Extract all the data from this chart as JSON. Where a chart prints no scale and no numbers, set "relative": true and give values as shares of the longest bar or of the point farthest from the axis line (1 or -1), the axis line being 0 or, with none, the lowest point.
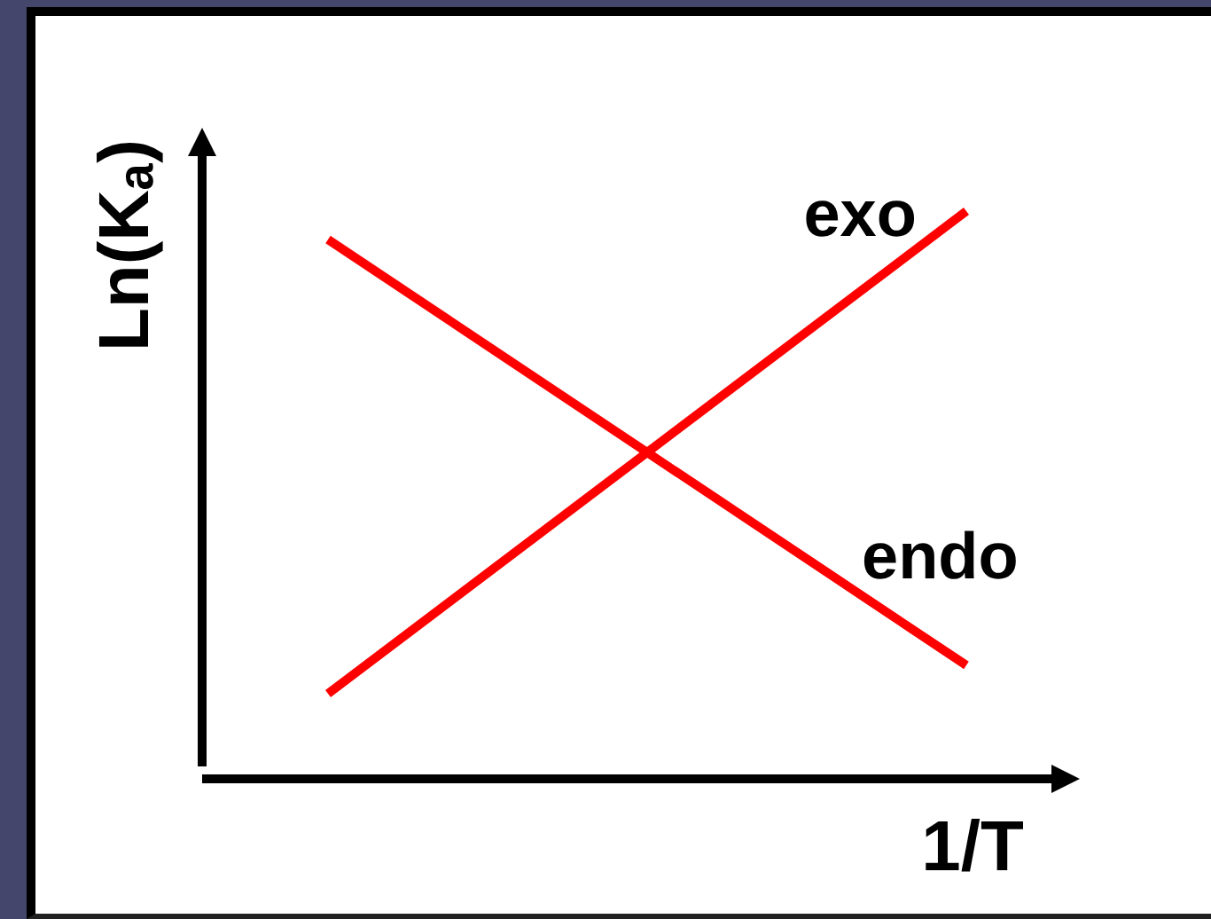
{
  "chart_data": {
    "type": "line",
    "relative": true,
    "ylabel": "Ln(Kₐ)",
    "xlabel": "1/T",
    "categories": [
      null,
      null
    ],
    "series": [
      {
        "name": "exo",
        "color": "#ff0000",
        "values": [
          0.15,
          1
        ]
      },
      {
        "name": "endo",
        "color": "#ff0000",
        "values": [
          0.95,
          0.2
        ]
      }
    ]
  }
}
